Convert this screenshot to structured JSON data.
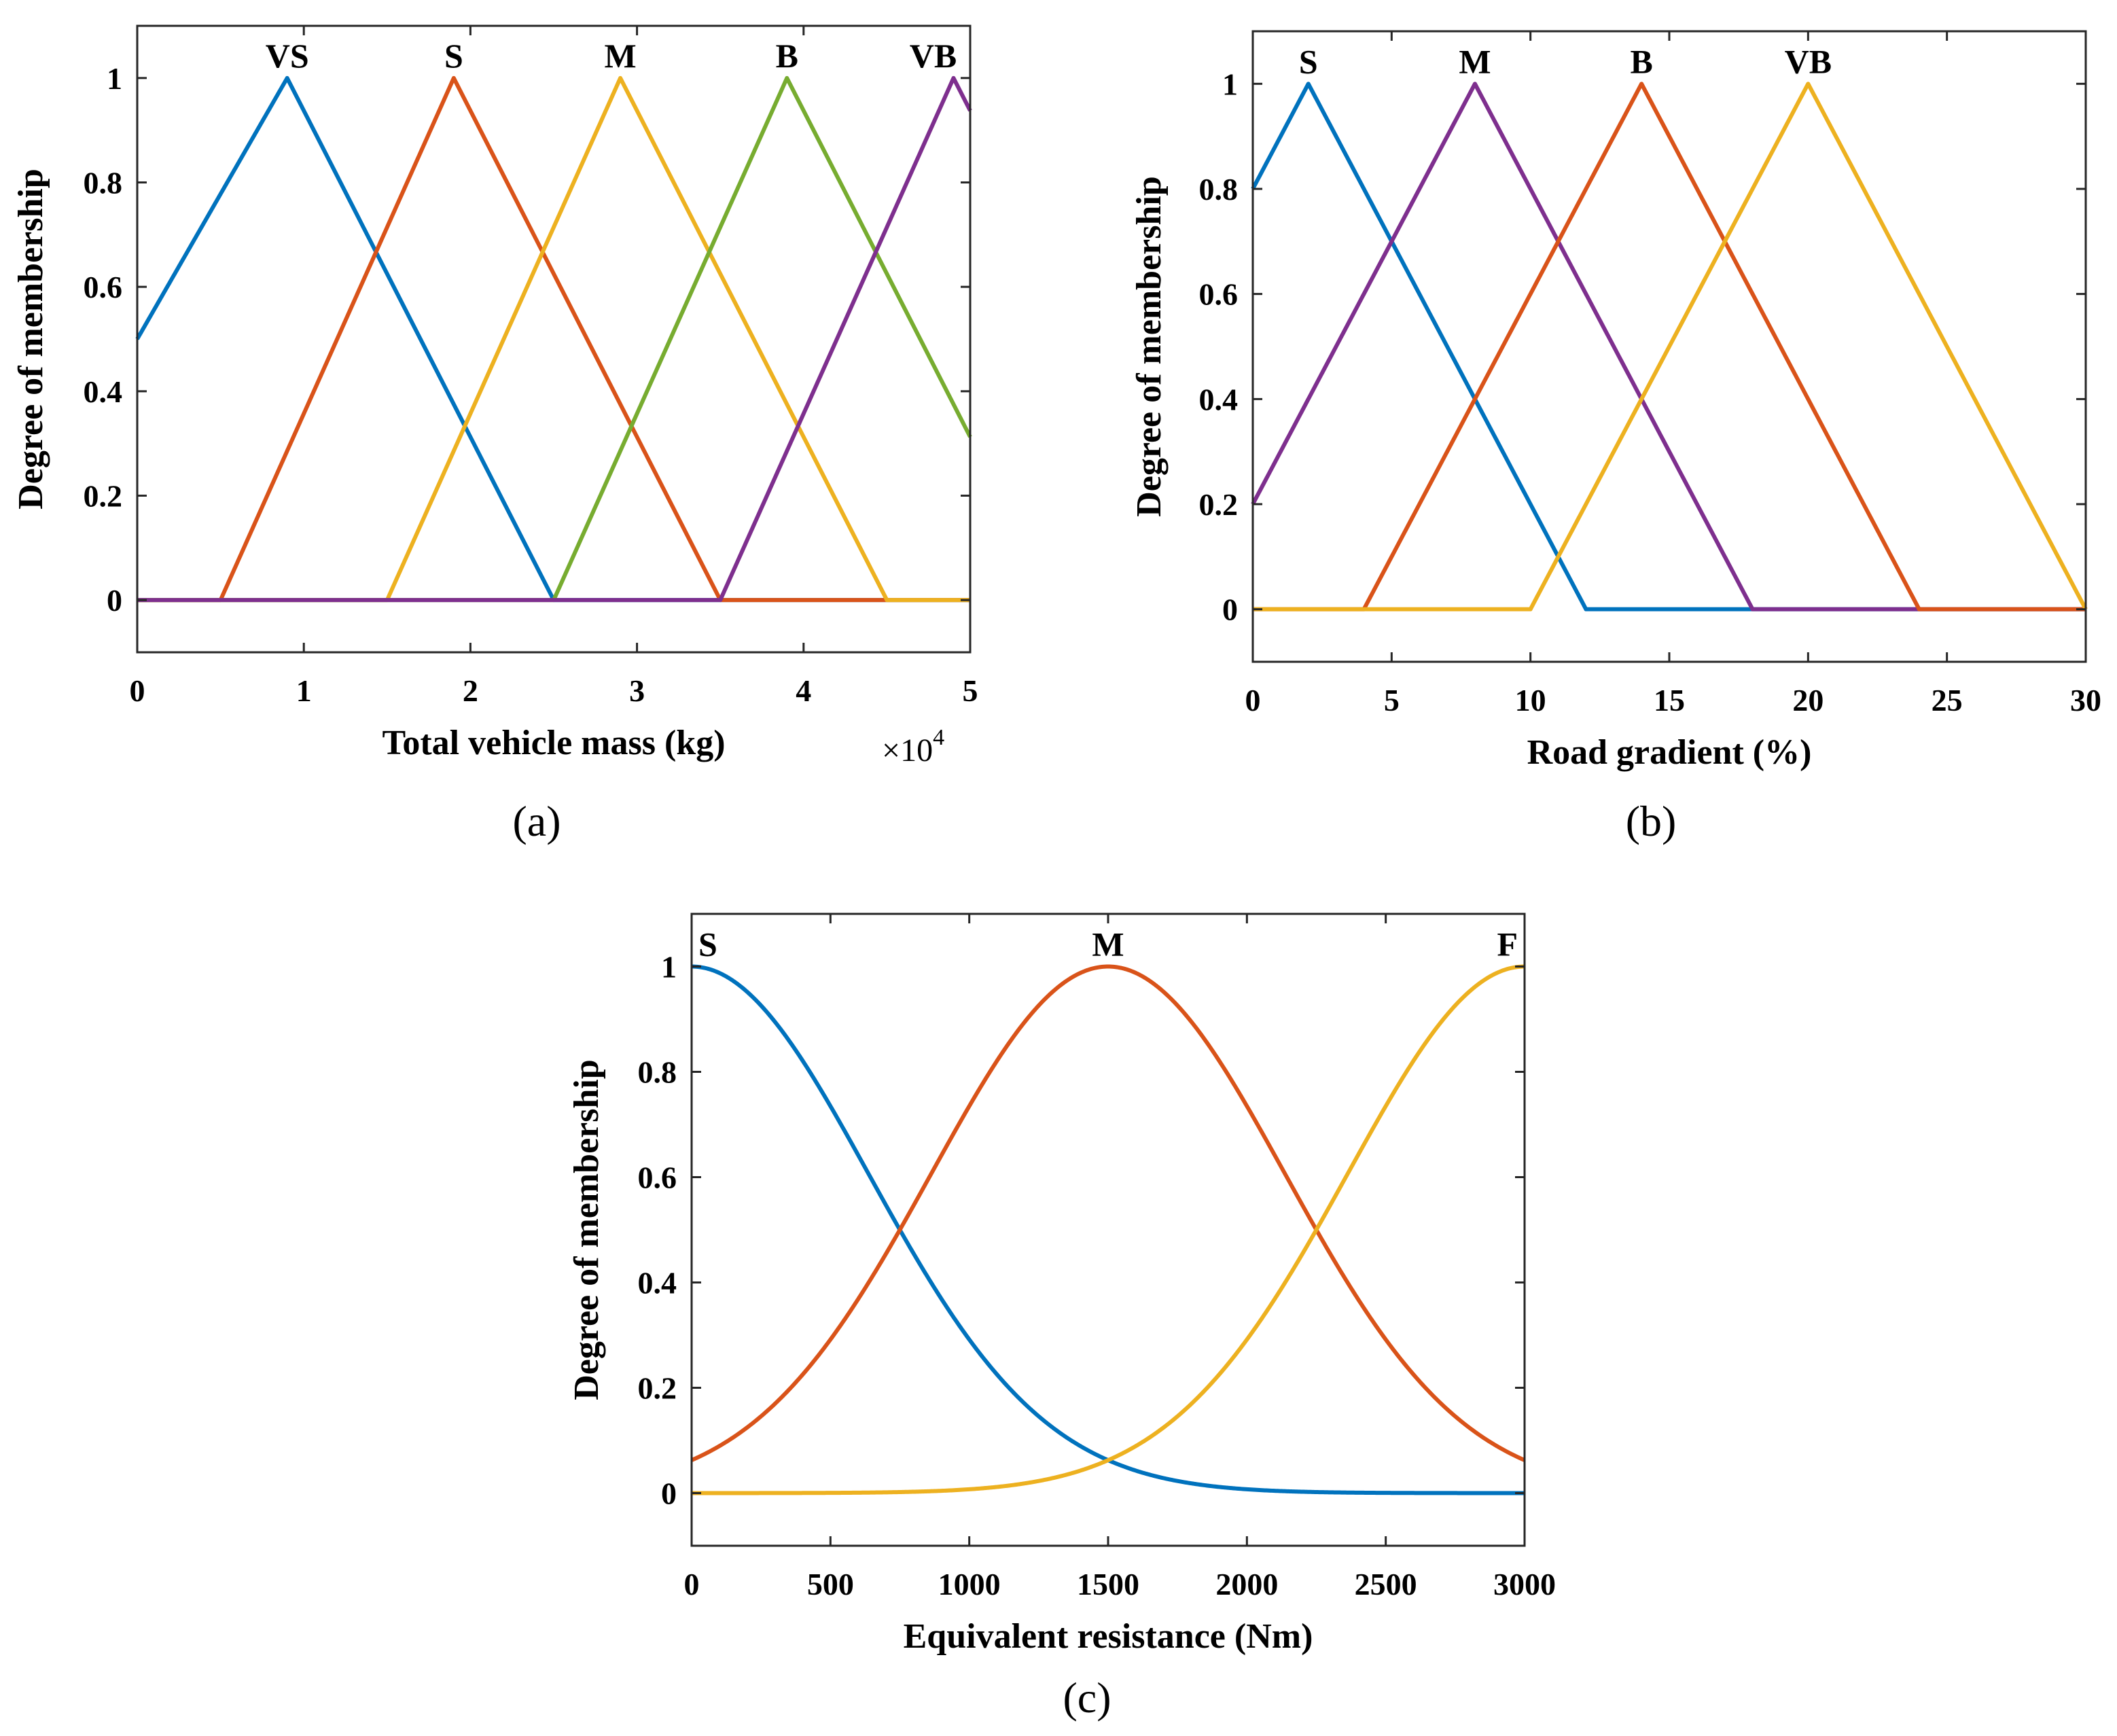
{
  "colors": {
    "blue": "#0072BD",
    "red": "#D95319",
    "yellow": "#EDB120",
    "purple": "#7E2F8E",
    "green": "#77AC30"
  },
  "chart_data": [
    {
      "id": "a",
      "type": "line",
      "subtype": "triangular-membership",
      "caption": "(a)",
      "xlabel": "Total vehicle mass (kg)",
      "ylabel": "Degree of membership",
      "xlim": [
        0,
        5
      ],
      "ylim": [
        -0.1,
        1.1
      ],
      "xticks": [
        0,
        1,
        2,
        3,
        4,
        5
      ],
      "xtick_labels": [
        "0",
        "1",
        "2",
        "3",
        "4",
        "5"
      ],
      "yticks": [
        0,
        0.2,
        0.4,
        0.6,
        0.8,
        1
      ],
      "ytick_labels": [
        "0",
        "0.2",
        "0.4",
        "0.6",
        "0.8",
        "1"
      ],
      "x_multiplier": {
        "base": "×10",
        "exp": "4"
      },
      "series": [
        {
          "name": "VS",
          "color": "#0072BD",
          "params": [
            -0.9,
            0.9,
            2.5
          ]
        },
        {
          "name": "S",
          "color": "#D95319",
          "params": [
            0.5,
            1.9,
            3.5
          ]
        },
        {
          "name": "M",
          "color": "#EDB120",
          "params": [
            1.5,
            2.9,
            4.5
          ]
        },
        {
          "name": "B",
          "color": "#77AC30",
          "params": [
            2.5,
            3.9,
            5.5
          ]
        },
        {
          "name": "VB",
          "color": "#7E2F8E",
          "params": [
            3.5,
            4.9,
            6.5
          ]
        }
      ]
    },
    {
      "id": "b",
      "type": "line",
      "subtype": "triangular-membership",
      "caption": "(b)",
      "xlabel": "Road gradient (%)",
      "ylabel": "Degree of membership",
      "xlim": [
        0,
        30
      ],
      "ylim": [
        -0.1,
        1.1
      ],
      "xticks": [
        0,
        5,
        10,
        15,
        20,
        25,
        30
      ],
      "xtick_labels": [
        "0",
        "5",
        "10",
        "15",
        "20",
        "25",
        "30"
      ],
      "yticks": [
        0,
        0.2,
        0.4,
        0.6,
        0.8,
        1
      ],
      "ytick_labels": [
        "0",
        "0.2",
        "0.4",
        "0.6",
        "0.8",
        "1"
      ],
      "series": [
        {
          "name": "S",
          "color": "#0072BD",
          "params": [
            -8,
            2,
            12
          ]
        },
        {
          "name": "M",
          "color": "#7E2F8E",
          "params": [
            -2,
            8,
            18
          ]
        },
        {
          "name": "B",
          "color": "#D95319",
          "params": [
            4,
            14,
            24
          ]
        },
        {
          "name": "VB",
          "color": "#EDB120",
          "params": [
            10,
            20,
            30
          ]
        }
      ]
    },
    {
      "id": "c",
      "type": "line",
      "subtype": "gaussian-membership",
      "caption": "(c)",
      "xlabel": "Equivalent resistance (Nm)",
      "ylabel": "Degree of membership",
      "xlim": [
        0,
        3000
      ],
      "ylim": [
        -0.1,
        1.1
      ],
      "xticks": [
        0,
        500,
        1000,
        1500,
        2000,
        2500,
        3000
      ],
      "xtick_labels": [
        "0",
        "500",
        "1000",
        "1500",
        "2000",
        "2500",
        "3000"
      ],
      "yticks": [
        0,
        0.2,
        0.4,
        0.6,
        0.8,
        1
      ],
      "ytick_labels": [
        "0",
        "0.2",
        "0.4",
        "0.6",
        "0.8",
        "1"
      ],
      "series": [
        {
          "name": "S",
          "color": "#0072BD",
          "center": 0,
          "sigma": 637
        },
        {
          "name": "M",
          "color": "#D95319",
          "center": 1500,
          "sigma": 637
        },
        {
          "name": "F",
          "color": "#EDB120",
          "center": 3000,
          "sigma": 637
        }
      ]
    }
  ]
}
